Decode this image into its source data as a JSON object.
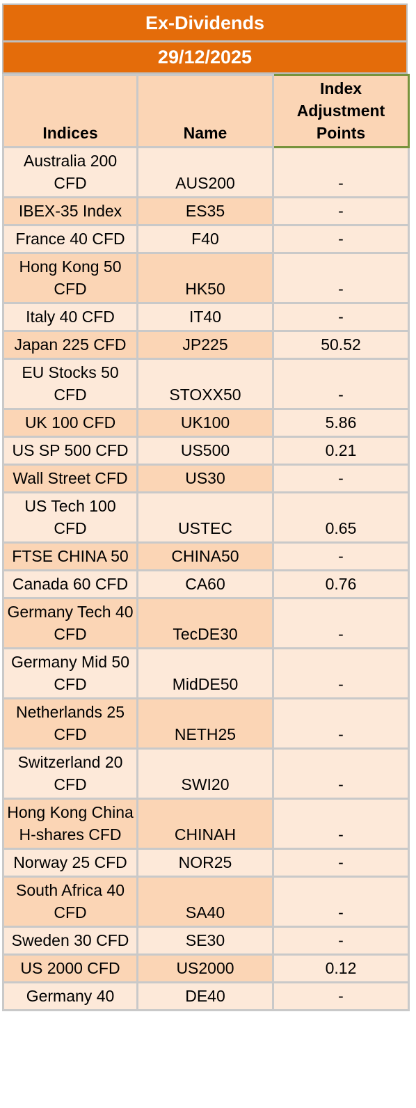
{
  "title": "Ex-Dividends",
  "date": "29/12/2025",
  "headers": {
    "indices": "Indices",
    "name": "Name",
    "points": "Index Adjustment Points"
  },
  "rows": [
    {
      "index": "Australia 200 CFD",
      "name": "AUS200",
      "points": "-"
    },
    {
      "index": "IBEX-35 Index",
      "name": "ES35",
      "points": "-"
    },
    {
      "index": "France 40 CFD",
      "name": "F40",
      "points": "-"
    },
    {
      "index": "Hong Kong 50 CFD",
      "name": "HK50",
      "points": "-"
    },
    {
      "index": "Italy 40 CFD",
      "name": "IT40",
      "points": "-"
    },
    {
      "index": "Japan 225 CFD",
      "name": "JP225",
      "points": "50.52"
    },
    {
      "index": "EU Stocks 50 CFD",
      "name": "STOXX50",
      "points": "-"
    },
    {
      "index": "UK 100 CFD",
      "name": "UK100",
      "points": "5.86"
    },
    {
      "index": "US SP 500 CFD",
      "name": "US500",
      "points": "0.21"
    },
    {
      "index": "Wall Street CFD",
      "name": "US30",
      "points": "-"
    },
    {
      "index": "US Tech 100 CFD",
      "name": "USTEC",
      "points": "0.65"
    },
    {
      "index": "FTSE CHINA 50",
      "name": "CHINA50",
      "points": "-"
    },
    {
      "index": "Canada 60 CFD",
      "name": "CA60",
      "points": "0.76"
    },
    {
      "index": "Germany Tech 40 CFD",
      "name": "TecDE30",
      "points": "-"
    },
    {
      "index": "Germany Mid 50 CFD",
      "name": "MidDE50",
      "points": "-"
    },
    {
      "index": "Netherlands 25 CFD",
      "name": "NETH25",
      "points": "-"
    },
    {
      "index": "Switzerland 20 CFD",
      "name": "SWI20",
      "points": "-"
    },
    {
      "index": "Hong Kong China H-shares CFD",
      "name": "CHINAH",
      "points": "-"
    },
    {
      "index": "Norway 25 CFD",
      "name": "NOR25",
      "points": "-"
    },
    {
      "index": "South Africa 40 CFD",
      "name": "SA40",
      "points": "-"
    },
    {
      "index": "Sweden 30 CFD",
      "name": "SE30",
      "points": "-"
    },
    {
      "index": "US 2000 CFD",
      "name": "US2000",
      "points": "0.12"
    },
    {
      "index": "Germany 40",
      "name": "DE40",
      "points": "-"
    }
  ]
}
